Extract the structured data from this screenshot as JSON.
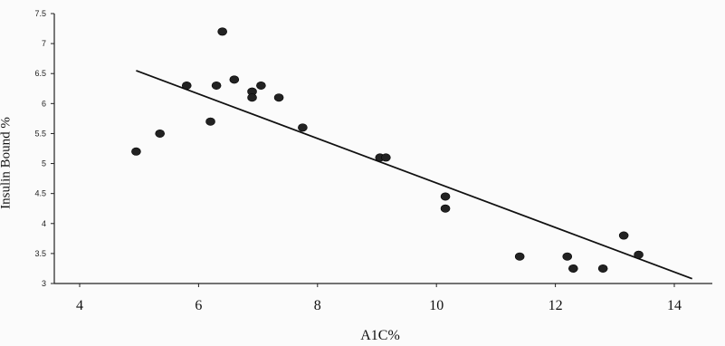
{
  "chart_data": {
    "type": "scatter",
    "title": "",
    "xlabel": "A1C%",
    "ylabel": "Insulin Bound %",
    "xlim": [
      4,
      15
    ],
    "ylim": [
      3,
      7.5
    ],
    "xticks": [
      "4",
      "6",
      "8",
      "10",
      "12",
      "14"
    ],
    "yticks": [
      "3",
      "3.5",
      "4",
      "4.5",
      "5",
      "5.5",
      "6",
      "6.5",
      "7",
      "7.5"
    ],
    "grid": false,
    "legend": "none",
    "series": [
      {
        "points": [
          {
            "x": 4.95,
            "y": 5.2
          },
          {
            "x": 5.35,
            "y": 5.5
          },
          {
            "x": 5.8,
            "y": 6.3
          },
          {
            "x": 6.2,
            "y": 5.7
          },
          {
            "x": 6.3,
            "y": 6.3
          },
          {
            "x": 6.4,
            "y": 7.2
          },
          {
            "x": 6.6,
            "y": 6.4
          },
          {
            "x": 6.9,
            "y": 6.2
          },
          {
            "x": 6.9,
            "y": 6.1
          },
          {
            "x": 7.05,
            "y": 6.3
          },
          {
            "x": 7.35,
            "y": 6.1
          },
          {
            "x": 7.75,
            "y": 5.6
          },
          {
            "x": 9.05,
            "y": 5.1
          },
          {
            "x": 9.15,
            "y": 5.1
          },
          {
            "x": 10.15,
            "y": 4.45
          },
          {
            "x": 10.15,
            "y": 4.25
          },
          {
            "x": 11.4,
            "y": 3.45
          },
          {
            "x": 12.2,
            "y": 3.45
          },
          {
            "x": 12.3,
            "y": 3.25
          },
          {
            "x": 12.8,
            "y": 3.25
          },
          {
            "x": 13.15,
            "y": 3.8
          },
          {
            "x": 13.4,
            "y": 3.48
          }
        ]
      }
    ],
    "trendline": {
      "x": [
        4.95,
        14.3
      ],
      "y": [
        6.55,
        3.08
      ]
    }
  },
  "colors": {
    "marker": "#222222",
    "line": "#111111",
    "axis": "#222222"
  }
}
